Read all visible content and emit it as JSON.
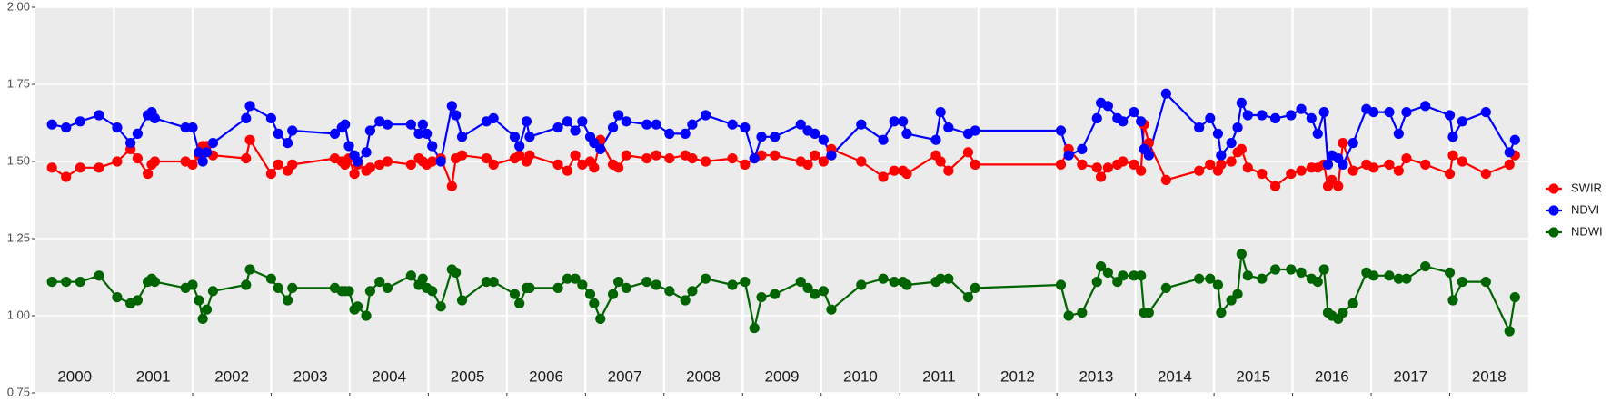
{
  "chart_data": {
    "type": "line",
    "year_labels": [
      2000,
      2001,
      2002,
      2003,
      2004,
      2005,
      2006,
      2007,
      2008,
      2009,
      2010,
      2011,
      2012,
      2013,
      2014,
      2015,
      2016,
      2017,
      2018
    ],
    "xlim": [
      2000,
      2019
    ],
    "xticks": [
      2001,
      2002,
      2003,
      2004,
      2005,
      2006,
      2007,
      2008,
      2009,
      2010,
      2011,
      2012,
      2013,
      2014,
      2015,
      2016,
      2017,
      2018
    ],
    "ylim": [
      0.75,
      2
    ],
    "yticks": [
      0.75,
      {
        "value": 1,
        "label": "1.00"
      },
      1.25,
      {
        "value": 1.5,
        "label": "1.50"
      },
      1.75,
      {
        "value": 2,
        "label": "2.00"
      }
    ],
    "grid": true,
    "legend": "right",
    "x": [
      2000.21,
      2000.39,
      2000.57,
      2000.81,
      2001.04,
      2001.21,
      2001.3,
      2001.43,
      2001.48,
      2001.52,
      2001.91,
      2002.0,
      2002.08,
      2002.13,
      2002.18,
      2002.26,
      2002.68,
      2002.73,
      2003.0,
      2003.09,
      2003.21,
      2003.27,
      2003.81,
      2003.9,
      2003.94,
      2003.99,
      2004.06,
      2004.1,
      2004.21,
      2004.26,
      2004.38,
      2004.48,
      2004.78,
      2004.88,
      2004.93,
      2004.98,
      2005.05,
      2005.16,
      2005.3,
      2005.35,
      2005.43,
      2005.74,
      2005.83,
      2006.1,
      2006.16,
      2006.25,
      2006.29,
      2006.65,
      2006.77,
      2006.87,
      2006.96,
      2007.06,
      2007.11,
      2007.19,
      2007.35,
      2007.42,
      2007.52,
      2007.78,
      2007.9,
      2008.07,
      2008.27,
      2008.36,
      2008.53,
      2008.87,
      2009.03,
      2009.15,
      2009.24,
      2009.41,
      2009.74,
      2009.83,
      2009.92,
      2010.03,
      2010.13,
      2010.51,
      2010.79,
      2010.93,
      2011.04,
      2011.09,
      2011.46,
      2011.52,
      2011.62,
      2011.87,
      2011.96,
      2013.05,
      2013.15,
      2013.32,
      2013.51,
      2013.56,
      2013.65,
      2013.77,
      2013.84,
      2013.98,
      2014.07,
      2014.11,
      2014.17,
      2014.39,
      2014.81,
      2014.95,
      2015.05,
      2015.09,
      2015.22,
      2015.3,
      2015.35,
      2015.43,
      2015.61,
      2015.78,
      2015.98,
      2016.11,
      2016.24,
      2016.32,
      2016.4,
      2016.45,
      2016.5,
      2016.58,
      2016.64,
      2016.77,
      2016.94,
      2017.03,
      2017.23,
      2017.35,
      2017.45,
      2017.69,
      2018.0,
      2018.04,
      2018.16,
      2018.46,
      2018.76,
      2018.83
    ],
    "series": [
      {
        "name": "SWIR",
        "color": "#ff0000",
        "values": [
          1.48,
          1.45,
          1.48,
          1.48,
          1.5,
          1.54,
          1.51,
          1.46,
          1.49,
          1.5,
          1.5,
          1.49,
          1.52,
          1.55,
          1.55,
          1.52,
          1.51,
          1.57,
          1.46,
          1.49,
          1.47,
          1.49,
          1.51,
          1.5,
          1.49,
          1.51,
          1.46,
          1.49,
          1.47,
          1.48,
          1.49,
          1.5,
          1.49,
          1.51,
          1.5,
          1.49,
          1.5,
          1.51,
          1.42,
          1.51,
          1.52,
          1.51,
          1.49,
          1.51,
          1.52,
          1.5,
          1.52,
          1.49,
          1.47,
          1.52,
          1.49,
          1.5,
          1.48,
          1.57,
          1.49,
          1.48,
          1.52,
          1.51,
          1.52,
          1.51,
          1.52,
          1.51,
          1.5,
          1.51,
          1.49,
          1.51,
          1.52,
          1.52,
          1.5,
          1.49,
          1.52,
          1.5,
          1.54,
          1.5,
          1.45,
          1.47,
          1.47,
          1.46,
          1.52,
          1.5,
          1.47,
          1.53,
          1.49,
          1.49,
          1.54,
          1.49,
          1.48,
          1.45,
          1.48,
          1.49,
          1.5,
          1.49,
          1.47,
          1.62,
          1.56,
          1.44,
          1.47,
          1.49,
          1.47,
          1.49,
          1.5,
          1.53,
          1.54,
          1.48,
          1.46,
          1.42,
          1.46,
          1.47,
          1.48,
          1.48,
          1.49,
          1.42,
          1.44,
          1.42,
          1.56,
          1.47,
          1.49,
          1.48,
          1.49,
          1.47,
          1.51,
          1.49,
          1.46,
          1.52,
          1.5,
          1.46,
          1.49,
          1.52
        ]
      },
      {
        "name": "NDVI",
        "color": "#0000ff",
        "values": [
          1.62,
          1.61,
          1.63,
          1.65,
          1.61,
          1.56,
          1.59,
          1.65,
          1.66,
          1.64,
          1.61,
          1.61,
          1.53,
          1.5,
          1.53,
          1.56,
          1.64,
          1.68,
          1.64,
          1.59,
          1.56,
          1.6,
          1.59,
          1.61,
          1.62,
          1.55,
          1.52,
          1.5,
          1.53,
          1.6,
          1.63,
          1.62,
          1.62,
          1.59,
          1.62,
          1.59,
          1.55,
          1.5,
          1.68,
          1.65,
          1.58,
          1.63,
          1.64,
          1.58,
          1.55,
          1.63,
          1.58,
          1.61,
          1.63,
          1.6,
          1.63,
          1.58,
          1.56,
          1.54,
          1.61,
          1.65,
          1.63,
          1.62,
          1.62,
          1.59,
          1.59,
          1.62,
          1.65,
          1.62,
          1.61,
          1.51,
          1.58,
          1.58,
          1.62,
          1.6,
          1.59,
          1.57,
          1.52,
          1.62,
          1.57,
          1.63,
          1.63,
          1.59,
          1.57,
          1.66,
          1.61,
          1.59,
          1.6,
          1.6,
          1.52,
          1.54,
          1.64,
          1.69,
          1.68,
          1.64,
          1.63,
          1.66,
          1.63,
          1.54,
          1.52,
          1.72,
          1.61,
          1.64,
          1.59,
          1.52,
          1.56,
          1.61,
          1.69,
          1.65,
          1.65,
          1.64,
          1.65,
          1.67,
          1.64,
          1.59,
          1.66,
          1.49,
          1.52,
          1.51,
          1.49,
          1.56,
          1.67,
          1.66,
          1.66,
          1.59,
          1.66,
          1.68,
          1.65,
          1.58,
          1.63,
          1.66,
          1.53,
          1.57
        ]
      },
      {
        "name": "NDWI",
        "color": "#006400",
        "values": [
          1.11,
          1.11,
          1.11,
          1.13,
          1.06,
          1.04,
          1.05,
          1.11,
          1.12,
          1.11,
          1.09,
          1.1,
          1.05,
          0.99,
          1.02,
          1.08,
          1.1,
          1.15,
          1.12,
          1.09,
          1.05,
          1.09,
          1.09,
          1.08,
          1.08,
          1.08,
          1.02,
          1.03,
          1.0,
          1.08,
          1.11,
          1.09,
          1.13,
          1.1,
          1.12,
          1.09,
          1.08,
          1.03,
          1.15,
          1.14,
          1.05,
          1.11,
          1.11,
          1.07,
          1.04,
          1.09,
          1.09,
          1.09,
          1.12,
          1.12,
          1.1,
          1.07,
          1.04,
          0.99,
          1.07,
          1.11,
          1.09,
          1.11,
          1.1,
          1.08,
          1.05,
          1.08,
          1.12,
          1.1,
          1.11,
          0.96,
          1.06,
          1.07,
          1.11,
          1.09,
          1.07,
          1.08,
          1.02,
          1.1,
          1.12,
          1.11,
          1.11,
          1.1,
          1.11,
          1.12,
          1.12,
          1.06,
          1.09,
          1.1,
          1.0,
          1.01,
          1.11,
          1.16,
          1.14,
          1.11,
          1.13,
          1.13,
          1.13,
          1.01,
          1.01,
          1.09,
          1.12,
          1.12,
          1.1,
          1.01,
          1.05,
          1.07,
          1.2,
          1.13,
          1.12,
          1.15,
          1.15,
          1.14,
          1.12,
          1.11,
          1.15,
          1.01,
          1.0,
          0.99,
          1.01,
          1.04,
          1.14,
          1.13,
          1.13,
          1.12,
          1.12,
          1.16,
          1.14,
          1.05,
          1.11,
          1.11,
          0.95,
          1.06
        ]
      }
    ]
  }
}
